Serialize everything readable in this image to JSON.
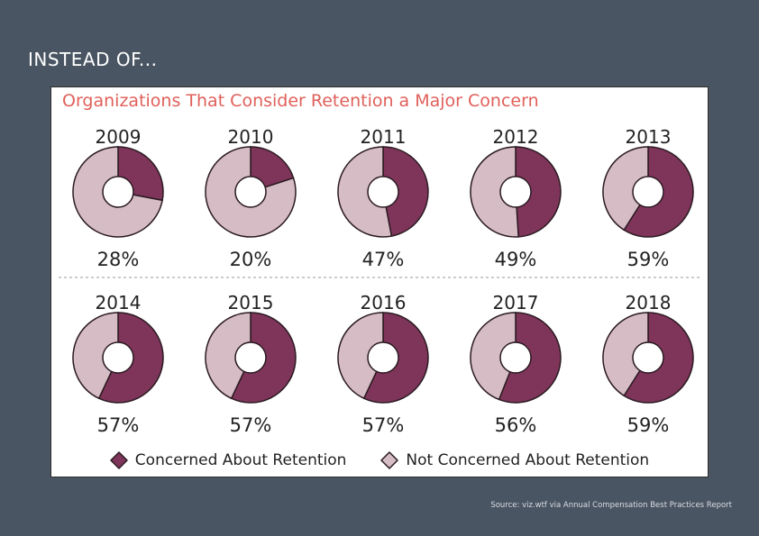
{
  "slide": {
    "heading": "INSTEAD OF...",
    "source": "Source: viz.wtf via Annual Compensation Best Practices Report"
  },
  "colors": {
    "concerned": "#7f3559",
    "not_concerned": "#d6bcc4",
    "title": "#e0605a"
  },
  "chart_data": {
    "type": "pie",
    "variant": "donut",
    "title": "Organizations That Consider Retention a Major Concern",
    "series": [
      {
        "name": "Concerned About Retention",
        "color": "#7f3559"
      },
      {
        "name": "Not Concerned About Retention",
        "color": "#d6bcc4"
      }
    ],
    "years": [
      {
        "year": "2009",
        "value": 28,
        "label": "28%"
      },
      {
        "year": "2010",
        "value": 20,
        "label": "20%"
      },
      {
        "year": "2011",
        "value": 47,
        "label": "47%"
      },
      {
        "year": "2012",
        "value": 49,
        "label": "49%"
      },
      {
        "year": "2013",
        "value": 59,
        "label": "59%"
      },
      {
        "year": "2014",
        "value": 57,
        "label": "57%"
      },
      {
        "year": "2015",
        "value": 57,
        "label": "57%"
      },
      {
        "year": "2016",
        "value": 57,
        "label": "57%"
      },
      {
        "year": "2017",
        "value": 56,
        "label": "56%"
      },
      {
        "year": "2018",
        "value": 59,
        "label": "59%"
      }
    ],
    "legend_position": "bottom"
  }
}
